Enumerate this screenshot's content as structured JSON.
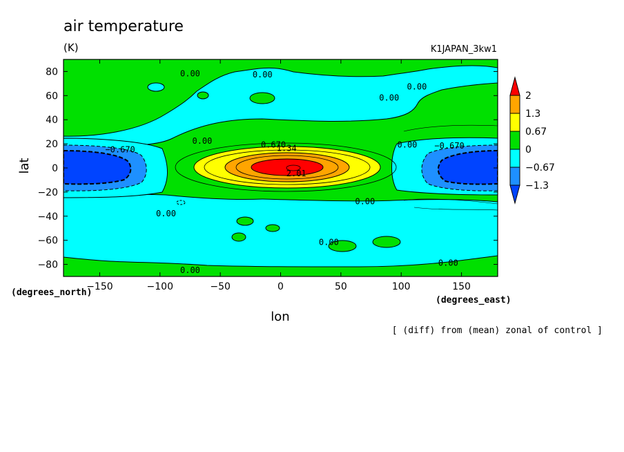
{
  "chart_data": {
    "type": "heatmap",
    "title": "air temperature",
    "units": "(K)",
    "run_label": "K1JAPAN_3kw1",
    "footer_note": "[ (diff) from (mean) zonal of control ]",
    "xlabel": "lon",
    "ylabel": "lat",
    "x_unit_label": "(degrees_east)",
    "y_unit_label": "(degrees_north)",
    "xlim": [
      -180,
      180
    ],
    "ylim": [
      -90,
      90
    ],
    "xticks": [
      -150,
      -100,
      -50,
      0,
      50,
      100,
      150
    ],
    "yticks": [
      80,
      60,
      40,
      20,
      0,
      -20,
      -40,
      -60,
      -80
    ],
    "xtick_labels": [
      "−150",
      "−100",
      "−50",
      "0",
      "50",
      "100",
      "150"
    ],
    "ytick_labels": [
      "80",
      "60",
      "40",
      "20",
      "0",
      "−20",
      "−40",
      "−60",
      "−80"
    ],
    "colorbar": {
      "levels": [
        "2",
        "1.3",
        "0.67",
        "0",
        "−0.67",
        "−1.3"
      ],
      "colors": [
        "#ff0000",
        "#ffa500",
        "#ffff00",
        "#00e000",
        "#00ffff",
        "#1e90ff",
        "#0044ff"
      ]
    },
    "contour_labels": [
      {
        "text": "0.00",
        "lon": -75,
        "lat": 76
      },
      {
        "text": "0.00",
        "lon": -15,
        "lat": 75
      },
      {
        "text": "0.00",
        "lon": 113,
        "lat": 65
      },
      {
        "text": "0.00",
        "lon": 90,
        "lat": 56
      },
      {
        "text": "0.00",
        "lon": -65,
        "lat": 20
      },
      {
        "text": "0.00",
        "lon": 105,
        "lat": 17
      },
      {
        "text": "−0.670",
        "lon": -133,
        "lat": 13
      },
      {
        "text": "−0.670",
        "lon": 140,
        "lat": 16
      },
      {
        "text": "0.670",
        "lon": -6,
        "lat": 17
      },
      {
        "text": "1.34",
        "lon": 5,
        "lat": 14
      },
      {
        "text": "2.01",
        "lon": 13,
        "lat": -7
      },
      {
        "text": "0.00",
        "lon": 70,
        "lat": -30
      },
      {
        "text": "0.00",
        "lon": -95,
        "lat": -40
      },
      {
        "text": "0.00",
        "lon": 40,
        "lat": -64
      },
      {
        "text": "0.00",
        "lon": -75,
        "lat": -87
      },
      {
        "text": "0.00",
        "lon": 139,
        "lat": -81
      }
    ]
  }
}
